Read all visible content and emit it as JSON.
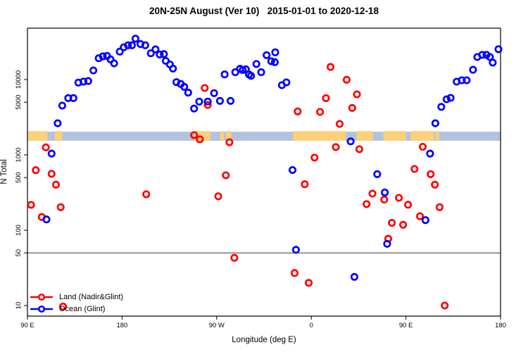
{
  "chart_data": {
    "type": "scatter",
    "title": "20N-25N August (Ver 10)   2015-01-01 to 2020-12-18",
    "xlabel": "Longitude (deg E)",
    "ylabel": "N Total",
    "x_axis": {
      "note": "degrees measured eastward from 90E; axis spans 450 degrees",
      "range": [
        0,
        450
      ],
      "ticks": [
        {
          "pos": 0,
          "label": "90 E"
        },
        {
          "pos": 90,
          "label": "180"
        },
        {
          "pos": 180,
          "label": "90 W"
        },
        {
          "pos": 270,
          "label": "0"
        },
        {
          "pos": 360,
          "label": "90 E"
        },
        {
          "pos": 450,
          "label": "180"
        }
      ]
    },
    "y_axis": {
      "scale": "log10",
      "range": [
        6,
        47000
      ],
      "ticks": [
        10,
        50,
        100,
        500,
        1000,
        5000,
        10000
      ],
      "tick_labels": [
        "10",
        "50",
        "100",
        "500",
        "1000",
        "5000",
        "10000"
      ]
    },
    "reference_line_y": 50,
    "map_strip": {
      "v_top": 2030,
      "v_bottom": 1540,
      "ocean_color": "#b3c3dd",
      "land_color": "#fcd17b",
      "land_segments": [
        [
          0,
          19
        ],
        [
          26,
          33
        ],
        [
          158.5,
          174
        ],
        [
          183.5,
          187
        ],
        [
          189,
          193.5
        ],
        [
          252.5,
          303
        ],
        [
          313,
          328.5
        ],
        [
          338.5,
          360
        ],
        [
          364.5,
          387
        ],
        [
          388.5,
          391.5
        ]
      ]
    },
    "series": [
      {
        "name": "Land (Nadir&Glint)",
        "color": "#ff0000",
        "points": [
          [
            168.6,
            7730
          ],
          [
            171.5,
            4600
          ],
          [
            257,
            3770
          ],
          [
            158.5,
            1830
          ],
          [
            163.9,
            1610
          ],
          [
            192.1,
            1470
          ],
          [
            296.9,
            2580
          ],
          [
            288.3,
            14700
          ],
          [
            303.6,
            9930
          ],
          [
            283.9,
            5670
          ],
          [
            313.4,
            6360
          ],
          [
            278.3,
            3720
          ],
          [
            308.9,
            4200
          ],
          [
            293.3,
            1270
          ],
          [
            315.7,
            1190
          ],
          [
            273.1,
            920
          ],
          [
            263.8,
            408
          ],
          [
            328.2,
            306
          ],
          [
            339.4,
            255
          ],
          [
            322.6,
            222
          ],
          [
            353.3,
            269
          ],
          [
            362,
            218
          ],
          [
            346.6,
            125
          ],
          [
            357.3,
            118
          ],
          [
            343.2,
            77
          ],
          [
            376,
            1280
          ],
          [
            368.2,
            650
          ],
          [
            383.5,
            555
          ],
          [
            387.5,
            402
          ],
          [
            392,
            202
          ],
          [
            373.4,
            153
          ],
          [
            17.5,
            1260
          ],
          [
            7.9,
            627
          ],
          [
            23,
            560
          ],
          [
            27.1,
            402
          ],
          [
            3.4,
            217
          ],
          [
            31.6,
            202
          ],
          [
            13.6,
            150
          ],
          [
            188.7,
            536
          ],
          [
            113,
            300
          ],
          [
            181.5,
            282
          ],
          [
            196.8,
            43
          ],
          [
            254.1,
            27
          ],
          [
            267.5,
            20
          ],
          [
            396.9,
            10
          ],
          [
            33.8,
            9.7
          ]
        ]
      },
      {
        "name": "Ocean (Glint)",
        "color": "#0000ff",
        "points": [
          [
            28.7,
            2630
          ],
          [
            33.1,
            4510
          ],
          [
            38.8,
            5680
          ],
          [
            43.7,
            5680
          ],
          [
            48.4,
            9120
          ],
          [
            53.3,
            9400
          ],
          [
            57.8,
            9550
          ],
          [
            62.7,
            13200
          ],
          [
            67.8,
            19200
          ],
          [
            71.7,
            20300
          ],
          [
            75.7,
            20600
          ],
          [
            79,
            18500
          ],
          [
            82.4,
            16400
          ],
          [
            87.8,
            23500
          ],
          [
            91.6,
            26800
          ],
          [
            95.6,
            28500
          ],
          [
            99.4,
            28500
          ],
          [
            102.8,
            34900
          ],
          [
            107.5,
            29600
          ],
          [
            112,
            28500
          ],
          [
            117.3,
            22300
          ],
          [
            121.8,
            25200
          ],
          [
            125.8,
            21500
          ],
          [
            129.8,
            21800
          ],
          [
            131.6,
            17700
          ],
          [
            135.5,
            15900
          ],
          [
            138.4,
            14000
          ],
          [
            141.7,
            9230
          ],
          [
            145.8,
            8760
          ],
          [
            149.1,
            8020
          ],
          [
            152.9,
            6700
          ],
          [
            158.5,
            4120
          ],
          [
            163.4,
            5100
          ],
          [
            171.5,
            5100
          ],
          [
            177.5,
            6600
          ],
          [
            183.1,
            5210
          ],
          [
            193.2,
            5210
          ],
          [
            187.6,
            11700
          ],
          [
            197.7,
            12500
          ],
          [
            202.2,
            13900
          ],
          [
            204.8,
            13400
          ],
          [
            207.7,
            13700
          ],
          [
            210.7,
            11700
          ],
          [
            212.7,
            11200
          ],
          [
            217.8,
            16100
          ],
          [
            222.3,
            12500
          ],
          [
            227.5,
            21100
          ],
          [
            231.9,
            17500
          ],
          [
            235.7,
            23000
          ],
          [
            235.3,
            17000
          ],
          [
            242,
            8420
          ],
          [
            246.3,
            9180
          ],
          [
            252.1,
            630
          ],
          [
            255.4,
            55
          ],
          [
            307.4,
            1510
          ],
          [
            311,
            24
          ],
          [
            332.7,
            555
          ],
          [
            339.9,
            317
          ],
          [
            342.1,
            66
          ],
          [
            383,
            1040
          ],
          [
            378.6,
            136
          ],
          [
            388,
            2630
          ],
          [
            393.6,
            4340
          ],
          [
            398.7,
            5480
          ],
          [
            402.5,
            5720
          ],
          [
            408.3,
            9370
          ],
          [
            413.1,
            9780
          ],
          [
            417.8,
            9780
          ],
          [
            423.8,
            13500
          ],
          [
            427.9,
            19900
          ],
          [
            432.6,
            21300
          ],
          [
            436.6,
            21300
          ],
          [
            439.9,
            19900
          ],
          [
            442.6,
            16800
          ],
          [
            448,
            25300
          ],
          [
            23,
            1040
          ],
          [
            18.1,
            139
          ]
        ]
      }
    ],
    "legend": {
      "position": "bottom-left"
    }
  }
}
